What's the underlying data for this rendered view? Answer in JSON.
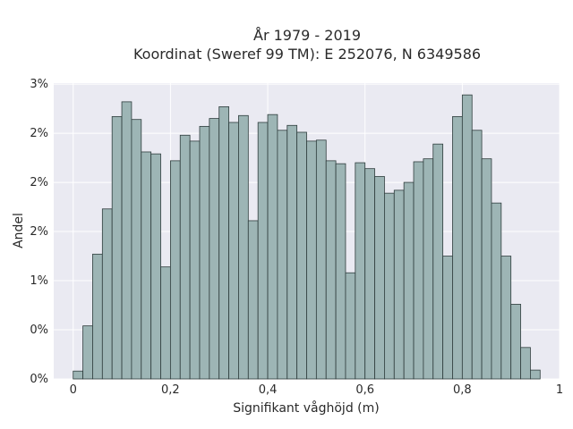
{
  "chart_data": {
    "type": "bar",
    "title_lines": [
      "År 1979 - 2019",
      "Koordinat (Sweref 99 TM): E 252076, N 6349586"
    ],
    "xlabel": "Signifikant våghöjd (m)",
    "ylabel": "Andel",
    "xlim": [
      -0.04,
      1.0
    ],
    "ylim": [
      0,
      0.0301
    ],
    "x_ticks": [
      {
        "value": 0,
        "label": "0"
      },
      {
        "value": 0.2,
        "label": "0,2"
      },
      {
        "value": 0.4,
        "label": "0,4"
      },
      {
        "value": 0.6,
        "label": "0,6"
      },
      {
        "value": 0.8,
        "label": "0,8"
      },
      {
        "value": 1.0,
        "label": "1"
      }
    ],
    "y_ticks": [
      {
        "value": 0,
        "label": "0%"
      },
      {
        "value": 0.005,
        "label": "0%"
      },
      {
        "value": 0.01,
        "label": "1%"
      },
      {
        "value": 0.015,
        "label": "2%"
      },
      {
        "value": 0.02,
        "label": "2%"
      },
      {
        "value": 0.025,
        "label": "2%"
      },
      {
        "value": 0.03,
        "label": "3%"
      }
    ],
    "bin_width": 0.02,
    "bins_start": [
      0.0,
      0.02,
      0.04,
      0.06,
      0.08,
      0.1,
      0.12,
      0.14,
      0.16,
      0.18,
      0.2,
      0.22,
      0.24,
      0.26,
      0.28,
      0.3,
      0.32,
      0.34,
      0.36,
      0.38,
      0.4,
      0.42,
      0.44,
      0.46,
      0.48,
      0.5,
      0.52,
      0.54,
      0.56,
      0.58,
      0.6,
      0.62,
      0.64,
      0.66,
      0.68,
      0.7,
      0.72,
      0.74,
      0.76,
      0.78,
      0.8,
      0.82,
      0.84,
      0.86,
      0.88,
      0.9,
      0.92,
      0.94
    ],
    "values": [
      0.0008,
      0.0054,
      0.0127,
      0.0173,
      0.0267,
      0.0282,
      0.0264,
      0.0231,
      0.0229,
      0.0114,
      0.0222,
      0.0248,
      0.0242,
      0.0257,
      0.0265,
      0.0277,
      0.0261,
      0.0268,
      0.0161,
      0.0261,
      0.0269,
      0.0253,
      0.0258,
      0.0251,
      0.0242,
      0.0243,
      0.0222,
      0.0219,
      0.0108,
      0.022,
      0.0214,
      0.0206,
      0.0189,
      0.0192,
      0.02,
      0.0221,
      0.0224,
      0.0239,
      0.0125,
      0.0267,
      0.0289,
      0.0253,
      0.0224,
      0.0179,
      0.0125,
      0.0076,
      0.0032,
      0.0009
    ],
    "bar_color": "#9db5b5",
    "bar_edge": "#2f3d3d",
    "plot_background": "#eaeaf2",
    "grid": true
  }
}
